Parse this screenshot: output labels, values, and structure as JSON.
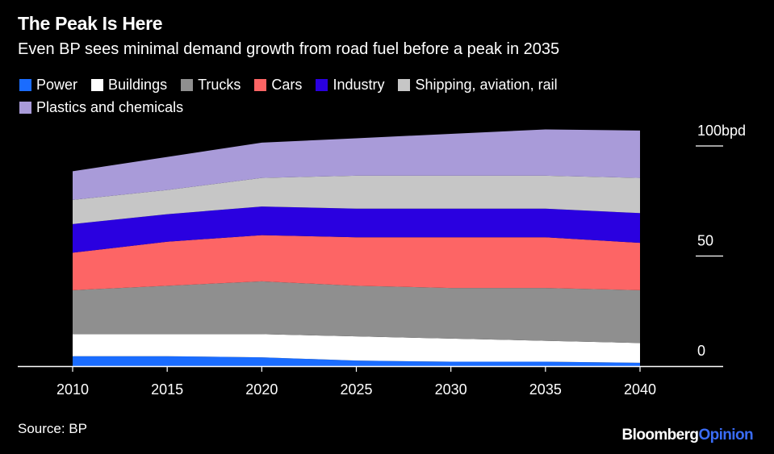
{
  "title": "The Peak Is Here",
  "subtitle": "Even BP sees minimal demand growth from road fuel before a peak in 2035",
  "source": "Source: BP",
  "brand": {
    "name": "Bloomberg",
    "section": "Opinion"
  },
  "chart_data": {
    "type": "area",
    "stacked": true,
    "title": "The Peak Is Here",
    "subtitle": "Even BP sees minimal demand growth from road fuel before a peak in 2035",
    "x": [
      2010,
      2015,
      2020,
      2025,
      2030,
      2035,
      2040
    ],
    "x_tick_labels": [
      "2010",
      "2015",
      "2020",
      "2025",
      "2030",
      "2035",
      "2040"
    ],
    "y_ticks": [
      0,
      50,
      100
    ],
    "y_tick_labels": [
      "0",
      "50",
      "100bpd"
    ],
    "ylim": [
      0,
      108
    ],
    "y_axis_side": "right",
    "grid": false,
    "legend_placement": "top",
    "series": [
      {
        "name": "Power",
        "color": "#1a6cff",
        "values": [
          4.5,
          4.5,
          4,
          2.5,
          2,
          2,
          1.5
        ]
      },
      {
        "name": "Buildings",
        "color": "#ffffff",
        "values": [
          10,
          10,
          10.5,
          11,
          10.5,
          9.5,
          9
        ]
      },
      {
        "name": "Trucks",
        "color": "#8f8f8f",
        "values": [
          20,
          22,
          24,
          23,
          23,
          24,
          24
        ]
      },
      {
        "name": "Cars",
        "color": "#fd6565",
        "values": [
          17,
          20,
          21,
          22,
          23,
          23,
          21.5
        ]
      },
      {
        "name": "Industry",
        "color": "#2a00e0",
        "values": [
          13,
          12.5,
          13,
          13,
          13,
          13,
          13.5
        ]
      },
      {
        "name": "Shipping, aviation, rail",
        "color": "#c6c6c6",
        "values": [
          11,
          11,
          13,
          15,
          15,
          15,
          16
        ]
      },
      {
        "name": "Plastics and chemicals",
        "color": "#a99bd9",
        "values": [
          13,
          15,
          16,
          17,
          19,
          21,
          21.5
        ]
      }
    ]
  }
}
